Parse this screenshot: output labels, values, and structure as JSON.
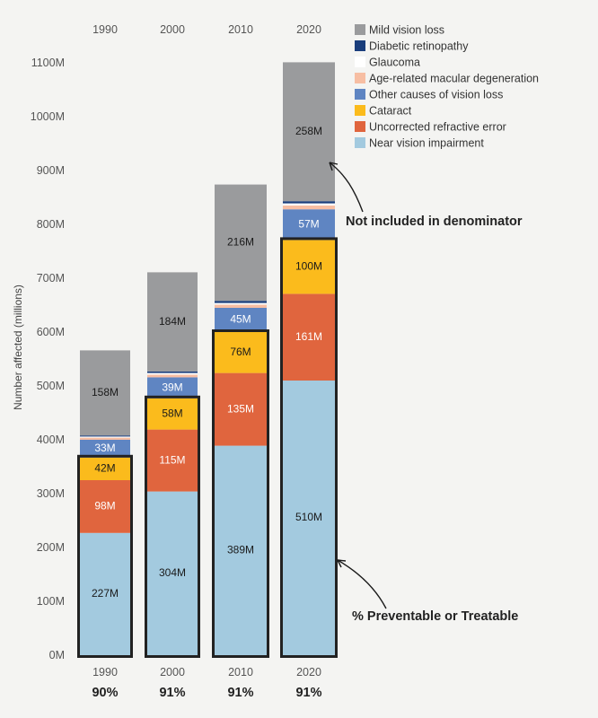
{
  "chart_data": {
    "type": "bar",
    "stacked": true,
    "categories": [
      "1990",
      "2000",
      "2010",
      "2020"
    ],
    "ylabel": "Number affected (millions)",
    "ylim": [
      0,
      1100
    ],
    "yticks": [
      "0M",
      "100M",
      "200M",
      "300M",
      "400M",
      "500M",
      "600M",
      "700M",
      "800M",
      "900M",
      "1000M",
      "1100M"
    ],
    "ytick_values": [
      0,
      100,
      200,
      300,
      400,
      500,
      600,
      700,
      800,
      900,
      1000,
      1100
    ],
    "series": [
      {
        "name": "Near vision impairment",
        "color": "#a3cadf",
        "values": [
          227,
          304,
          389,
          510
        ],
        "labels": [
          "227M",
          "304M",
          "389M",
          "510M"
        ],
        "label_color": "#1a1a1a"
      },
      {
        "name": "Uncorrected refractive error",
        "color": "#e0653e",
        "values": [
          98,
          115,
          135,
          161
        ],
        "labels": [
          "98M",
          "115M",
          "135M",
          "161M"
        ],
        "label_color": "#ffffff"
      },
      {
        "name": "Cataract",
        "color": "#fbbb1c",
        "values": [
          42,
          58,
          76,
          100
        ],
        "labels": [
          "42M",
          "58M",
          "76M",
          "100M"
        ],
        "label_color": "#1a1a1a"
      },
      {
        "name": "Other causes of vision loss",
        "color": "#5f85c2",
        "values": [
          33,
          39,
          45,
          57
        ],
        "labels": [
          "33M",
          "39M",
          "45M",
          "57M"
        ],
        "label_color": "#ffffff"
      },
      {
        "name": "Age-related macular degeneration",
        "color": "#f7bea3",
        "values": [
          4,
          5,
          6,
          7
        ],
        "labels": [
          "",
          "",
          "",
          ""
        ],
        "label_color": "#1a1a1a"
      },
      {
        "name": "Glaucoma",
        "color": "#ffffff",
        "values": [
          2,
          3,
          3,
          4
        ],
        "labels": [
          "",
          "",
          "",
          ""
        ],
        "label_color": "#1a1a1a"
      },
      {
        "name": "Diabetic retinopathy",
        "color": "#1a3e7c",
        "values": [
          2,
          3,
          4,
          4
        ],
        "labels": [
          "",
          "",
          "",
          ""
        ],
        "label_color": "#1a1a1a"
      },
      {
        "name": "Mild vision loss",
        "color": "#9a9b9d",
        "values": [
          158,
          184,
          216,
          258
        ],
        "labels": [
          "158M",
          "184M",
          "216M",
          "258M"
        ],
        "label_color": "#1a1a1a"
      }
    ],
    "legend": {
      "position": "top-right",
      "entries": [
        {
          "name": "Mild vision loss",
          "color": "#9a9b9d"
        },
        {
          "name": "Diabetic retinopathy",
          "color": "#1a3e7c"
        },
        {
          "name": "Glaucoma",
          "color": "#ffffff"
        },
        {
          "name": "Age-related macular degeneration",
          "color": "#f7bea3"
        },
        {
          "name": "Other causes of vision loss",
          "color": "#5f85c2"
        },
        {
          "name": "Cataract",
          "color": "#fbbb1c"
        },
        {
          "name": "Uncorrected refractive error",
          "color": "#e0653e"
        },
        {
          "name": "Near vision impairment",
          "color": "#a3cadf"
        }
      ]
    },
    "percentages": [
      "90%",
      "91%",
      "91%",
      "91%"
    ],
    "annotations": {
      "excluded": "Not included in denominator",
      "preventable": "% Preventable or Treatable"
    },
    "grid": false
  }
}
